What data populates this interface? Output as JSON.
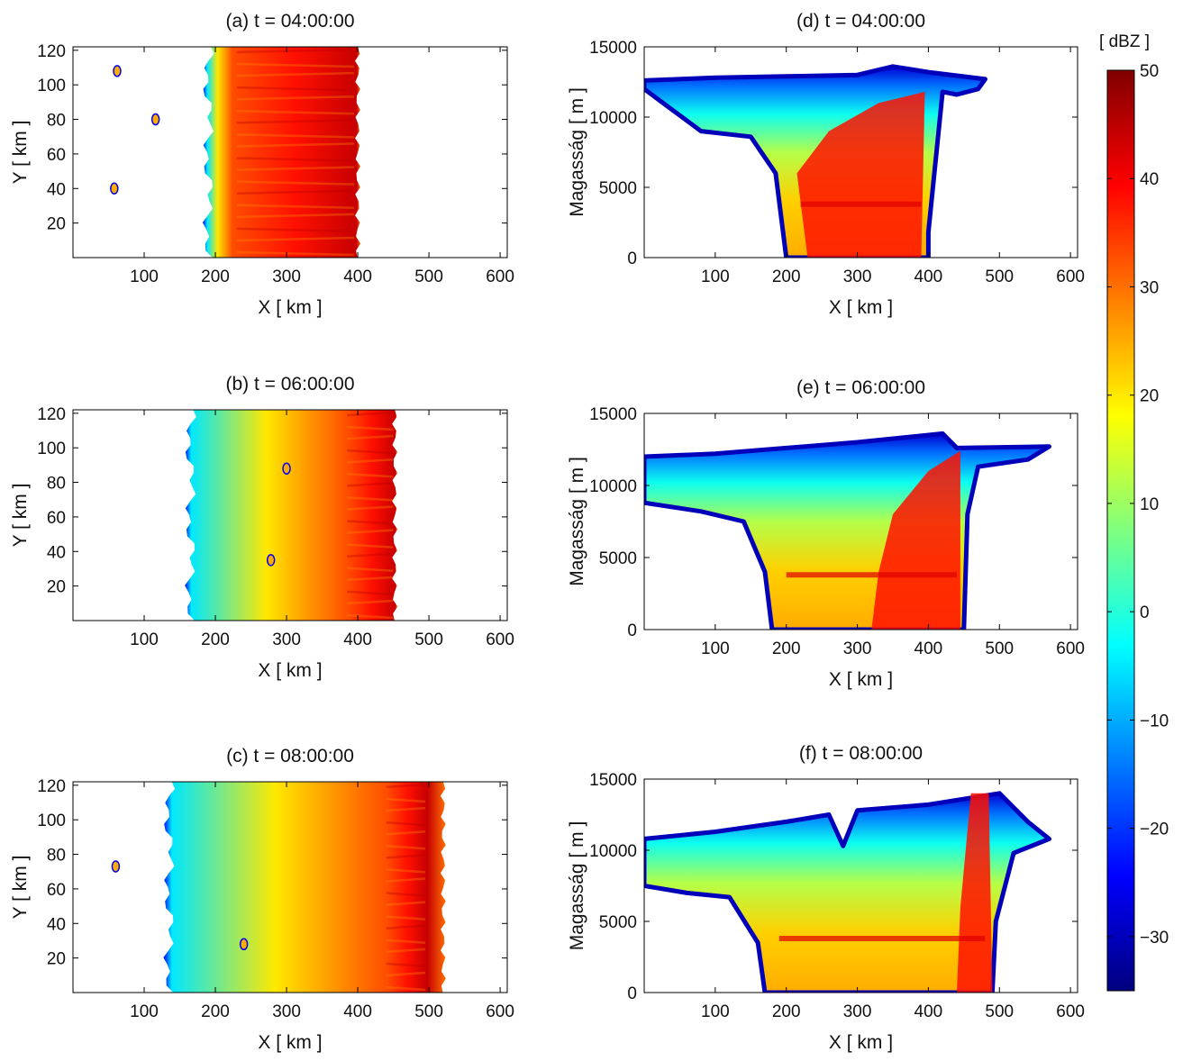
{
  "chart_data": [
    {
      "id": "a",
      "type": "heatmap",
      "view": "plan",
      "title": "(a) t = 04:00:00",
      "xlabel": "X [ km ]",
      "ylabel": "Y [ km ]",
      "xlim": [
        0,
        610
      ],
      "ylim": [
        0,
        122
      ],
      "xticks": [
        100,
        200,
        300,
        400,
        500,
        600
      ],
      "yticks": [
        20,
        40,
        60,
        80,
        100,
        120
      ],
      "band": {
        "west_edge": 190,
        "east_edge": 400,
        "core_west": 230,
        "core_east": 395
      },
      "cells": [
        {
          "x": 62,
          "y": 108
        },
        {
          "x": 58,
          "y": 40
        },
        {
          "x": 116,
          "y": 80
        }
      ]
    },
    {
      "id": "b",
      "type": "heatmap",
      "view": "plan",
      "title": "(b) t = 06:00:00",
      "xlabel": "X [ km ]",
      "ylabel": "Y [ km ]",
      "xlim": [
        0,
        610
      ],
      "ylim": [
        0,
        122
      ],
      "xticks": [
        100,
        200,
        300,
        400,
        500,
        600
      ],
      "yticks": [
        20,
        40,
        60,
        80,
        100,
        120
      ],
      "band": {
        "west_edge": 165,
        "east_edge": 452,
        "core_west": 385,
        "core_east": 450
      },
      "cells": [
        {
          "x": 300,
          "y": 88
        },
        {
          "x": 278,
          "y": 35
        }
      ]
    },
    {
      "id": "c",
      "type": "heatmap",
      "view": "plan",
      "title": "(c) t = 08:00:00",
      "xlabel": "X [ km ]",
      "ylabel": "Y [ km ]",
      "xlim": [
        0,
        610
      ],
      "ylim": [
        0,
        122
      ],
      "xticks": [
        100,
        200,
        300,
        400,
        500,
        600
      ],
      "yticks": [
        20,
        40,
        60,
        80,
        100,
        120
      ],
      "band": {
        "west_edge": 135,
        "east_edge": 520,
        "core_west": 440,
        "core_east": 495
      },
      "cells": [
        {
          "x": 240,
          "y": 28
        },
        {
          "x": 60,
          "y": 73
        }
      ]
    },
    {
      "id": "d",
      "type": "heatmap",
      "view": "cross-section",
      "title": "(d) t = 04:00:00",
      "xlabel": "X [ km ]",
      "ylabel": "Magasság [ m ]",
      "xlim": [
        0,
        610
      ],
      "ylim": [
        0,
        15000
      ],
      "xticks": [
        100,
        200,
        300,
        400,
        500,
        600
      ],
      "yticks": [
        0,
        5000,
        10000,
        15000
      ],
      "outline": [
        [
          0,
          12000
        ],
        [
          0,
          12600
        ],
        [
          100,
          12800
        ],
        [
          200,
          12900
        ],
        [
          300,
          13000
        ],
        [
          350,
          13600
        ],
        [
          400,
          13200
        ],
        [
          480,
          12700
        ],
        [
          470,
          12000
        ],
        [
          440,
          11600
        ],
        [
          420,
          11800
        ],
        [
          400,
          1800
        ],
        [
          400,
          0
        ],
        [
          200,
          0
        ],
        [
          185,
          6000
        ],
        [
          150,
          8600
        ],
        [
          80,
          9000
        ],
        [
          40,
          10500
        ],
        [
          0,
          12000
        ]
      ],
      "core": [
        [
          230,
          0
        ],
        [
          390,
          0
        ],
        [
          395,
          11800
        ],
        [
          330,
          11000
        ],
        [
          260,
          9000
        ],
        [
          215,
          6000
        ]
      ]
    },
    {
      "id": "e",
      "type": "heatmap",
      "view": "cross-section",
      "title": "(e) t = 06:00:00",
      "xlabel": "X [ km ]",
      "ylabel": "Magasság [ m ]",
      "xlim": [
        0,
        610
      ],
      "ylim": [
        0,
        15000
      ],
      "xticks": [
        100,
        200,
        300,
        400,
        500,
        600
      ],
      "yticks": [
        0,
        5000,
        10000,
        15000
      ],
      "outline": [
        [
          0,
          8800
        ],
        [
          0,
          12000
        ],
        [
          100,
          12200
        ],
        [
          200,
          12600
        ],
        [
          300,
          13000
        ],
        [
          420,
          13600
        ],
        [
          440,
          12600
        ],
        [
          570,
          12700
        ],
        [
          540,
          11800
        ],
        [
          470,
          11300
        ],
        [
          455,
          8000
        ],
        [
          450,
          0
        ],
        [
          180,
          0
        ],
        [
          170,
          4000
        ],
        [
          140,
          7500
        ],
        [
          80,
          8200
        ],
        [
          0,
          8800
        ]
      ],
      "core": [
        [
          320,
          0
        ],
        [
          445,
          0
        ],
        [
          445,
          12400
        ],
        [
          400,
          11000
        ],
        [
          350,
          8000
        ],
        [
          330,
          4000
        ]
      ]
    },
    {
      "id": "f",
      "type": "heatmap",
      "view": "cross-section",
      "title": "(f) t = 08:00:00",
      "xlabel": "X [ km ]",
      "ylabel": "Magasság [ m ]",
      "xlim": [
        0,
        610
      ],
      "ylim": [
        0,
        15000
      ],
      "xticks": [
        100,
        200,
        300,
        400,
        500,
        600
      ],
      "yticks": [
        0,
        5000,
        10000,
        15000
      ],
      "outline": [
        [
          0,
          7500
        ],
        [
          0,
          10800
        ],
        [
          100,
          11300
        ],
        [
          200,
          12000
        ],
        [
          260,
          12500
        ],
        [
          280,
          10300
        ],
        [
          300,
          12800
        ],
        [
          400,
          13200
        ],
        [
          500,
          14000
        ],
        [
          540,
          12000
        ],
        [
          570,
          10800
        ],
        [
          520,
          9800
        ],
        [
          495,
          5000
        ],
        [
          490,
          0
        ],
        [
          170,
          0
        ],
        [
          160,
          3500
        ],
        [
          120,
          6700
        ],
        [
          60,
          7000
        ],
        [
          0,
          7500
        ]
      ],
      "core": [
        [
          440,
          0
        ],
        [
          490,
          0
        ],
        [
          485,
          14000
        ],
        [
          460,
          14000
        ],
        [
          445,
          6000
        ]
      ]
    }
  ],
  "colorbar": {
    "label": "[ dBZ ]",
    "min": -35,
    "max": 50,
    "ticks": [
      50,
      40,
      30,
      20,
      10,
      0,
      -10,
      -20,
      -30
    ],
    "tick_labels": [
      "50",
      "40",
      "30",
      "20",
      "10",
      "0",
      "−10",
      "−20",
      "−30"
    ],
    "colormap": "jet",
    "colors": [
      "#00007f",
      "#0000ff",
      "#007fff",
      "#00ffff",
      "#7fff7f",
      "#ffff00",
      "#ff7f00",
      "#ff0000",
      "#7f0000"
    ]
  }
}
